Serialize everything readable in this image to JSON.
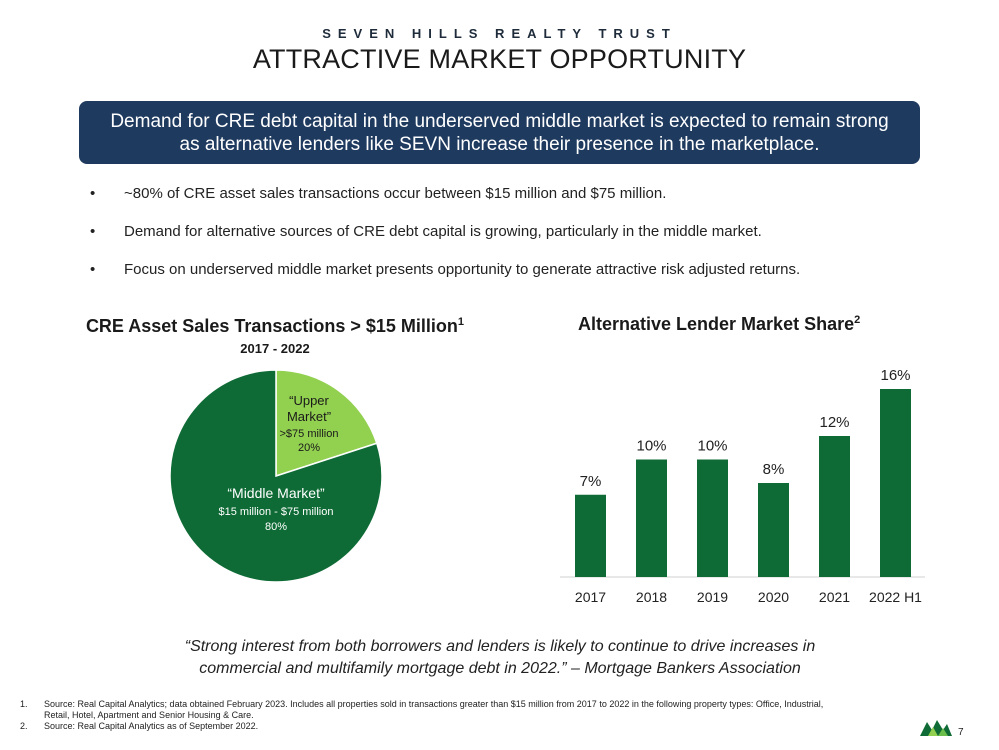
{
  "header": {
    "brand": "SEVEN HILLS REALTY TRUST",
    "title": "ATTRACTIVE MARKET OPPORTUNITY"
  },
  "banner": {
    "text": "Demand for CRE debt capital in the underserved middle market is expected to remain strong as alternative lenders like SEVN increase their presence in the marketplace."
  },
  "bullets": [
    "~80% of CRE asset sales transactions occur between $15 million and $75 million.",
    "Demand for alternative sources of CRE debt capital is growing, particularly in the middle market.",
    "Focus on underserved middle market presents opportunity to generate attractive risk adjusted returns."
  ],
  "bullet_symbol": "•",
  "chart_data": [
    {
      "type": "pie",
      "title": "CRE Asset Sales Transactions > $15 Million",
      "title_footnote": "1",
      "subtitle": "2017 - 2022",
      "slices": [
        {
          "name": "“Upper Market”",
          "range": ">$75 million",
          "value": 20,
          "label": "20%",
          "color": "#92d050"
        },
        {
          "name": "“Middle Market”",
          "range": "$15 million - $75 million",
          "value": 80,
          "label": "80%",
          "color": "#0e6b35"
        }
      ]
    },
    {
      "type": "bar",
      "title": "Alternative Lender Market Share",
      "title_footnote": "2",
      "categories": [
        "2017",
        "2018",
        "2019",
        "2020",
        "2021",
        "2022 H1"
      ],
      "values": [
        7,
        10,
        10,
        8,
        12,
        16
      ],
      "labels": [
        "7%",
        "10%",
        "10%",
        "8%",
        "12%",
        "16%"
      ],
      "ylim": [
        0,
        16
      ],
      "color": "#0e6b35"
    }
  ],
  "quote": {
    "line1": "“Strong interest from both borrowers and lenders is likely to continue to drive increases in",
    "line2": "commercial and multifamily mortgage debt in 2022.” – Mortgage Bankers Association"
  },
  "footnotes": [
    {
      "num": "1.",
      "text": "Source: Real Capital Analytics; data obtained February 2023. Includes all properties sold in transactions greater than $15 million from 2017 to 2022 in the following property types: Office, Industrial, Retail, Hotel, Apartment and Senior Housing & Care."
    },
    {
      "num": "2.",
      "text": "Source: Real Capital Analytics as of September 2022."
    }
  ],
  "page_number": "7",
  "colors": {
    "navy": "#1f3a5f",
    "dark_green": "#0e6b35",
    "light_green": "#92d050"
  }
}
